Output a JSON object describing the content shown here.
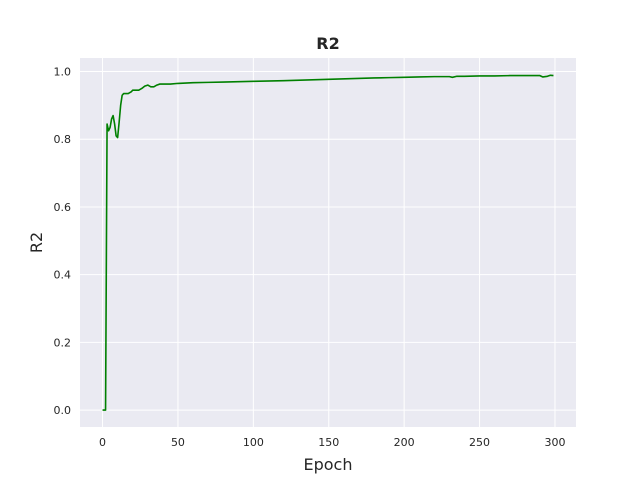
{
  "chart_data": {
    "type": "line",
    "title": "R2",
    "xlabel": "Epoch",
    "ylabel": "R2",
    "xlim": [
      -14.95,
      313.95
    ],
    "ylim": [
      -0.05,
      1.04
    ],
    "xticks": [
      0,
      50,
      100,
      150,
      200,
      250,
      300
    ],
    "yticks": [
      0.0,
      0.2,
      0.4,
      0.6,
      0.8,
      1.0
    ],
    "xtick_labels": [
      "0",
      "50",
      "100",
      "150",
      "200",
      "250",
      "300"
    ],
    "ytick_labels": [
      "0.0",
      "0.2",
      "0.4",
      "0.6",
      "0.8",
      "1.0"
    ],
    "grid": true,
    "legend": "none",
    "colors": {
      "background": "#eaeaf2",
      "grid": "#ffffff",
      "line": "#008000",
      "text": "#262626"
    },
    "series": [
      {
        "x": [
          0,
          2,
          3,
          4,
          5,
          6,
          7,
          8,
          9,
          10,
          11,
          12,
          13,
          14,
          15,
          17,
          19,
          20,
          22,
          24,
          26,
          28,
          30,
          32,
          34,
          36,
          38,
          40,
          45,
          50,
          55,
          60,
          70,
          80,
          100,
          120,
          150,
          180,
          190,
          200,
          210,
          220,
          230,
          232,
          235,
          240,
          250,
          260,
          270,
          280,
          290,
          292,
          295,
          297,
          299
        ],
        "y": [
          0.0,
          0.0,
          0.845,
          0.825,
          0.835,
          0.86,
          0.87,
          0.845,
          0.81,
          0.805,
          0.85,
          0.9,
          0.93,
          0.935,
          0.935,
          0.935,
          0.94,
          0.945,
          0.945,
          0.945,
          0.95,
          0.957,
          0.96,
          0.955,
          0.955,
          0.96,
          0.963,
          0.963,
          0.963,
          0.965,
          0.966,
          0.967,
          0.968,
          0.969,
          0.971,
          0.973,
          0.977,
          0.981,
          0.982,
          0.983,
          0.984,
          0.985,
          0.985,
          0.983,
          0.986,
          0.986,
          0.987,
          0.987,
          0.988,
          0.988,
          0.988,
          0.984,
          0.986,
          0.989,
          0.988
        ]
      }
    ]
  }
}
